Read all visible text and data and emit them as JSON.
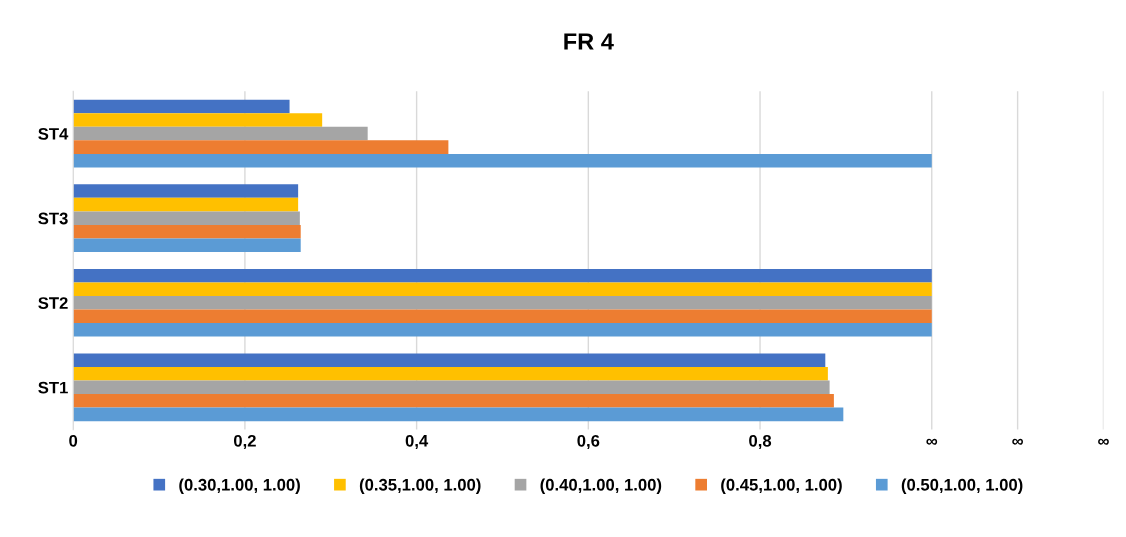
{
  "chart_data": {
    "type": "bar",
    "orientation": "horizontal",
    "title": "FR 4",
    "categories": [
      "ST4",
      "ST3",
      "ST2",
      "ST1"
    ],
    "series": [
      {
        "name": "(0.30,1.00, 1.00)",
        "color": "#4472c4",
        "values": [
          0.252,
          0.262,
          1.0,
          0.876
        ]
      },
      {
        "name": "(0.35,1.00, 1.00)",
        "color": "#ffc000",
        "values": [
          0.29,
          0.262,
          1.0,
          0.879
        ]
      },
      {
        "name": "(0.40,1.00, 1.00)",
        "color": "#a5a5a5",
        "values": [
          0.343,
          0.264,
          1.0,
          0.881
        ]
      },
      {
        "name": "(0.45,1.00, 1.00)",
        "color": "#ed7d31",
        "values": [
          0.437,
          0.265,
          1.0,
          0.886
        ]
      },
      {
        "name": "(0.50,1.00, 1.00)",
        "color": "#5b9bd5",
        "values": [
          1.0,
          0.265,
          1.0,
          0.897
        ]
      }
    ],
    "xlim": [
      0,
      1.2
    ],
    "xticks": [
      0,
      {
        "value": 0.2,
        "label": "0,2"
      },
      {
        "value": 0.4,
        "label": "0,4"
      },
      {
        "value": 0.6,
        "label": "0,6"
      },
      {
        "value": 0.8,
        "label": "0,8"
      },
      {
        "value": 1.0,
        "label": "∞"
      },
      {
        "value": 1.1,
        "label": "∞"
      },
      {
        "value": 1.2,
        "label": "∞"
      }
    ],
    "grid": "x",
    "legend": "bottom"
  }
}
